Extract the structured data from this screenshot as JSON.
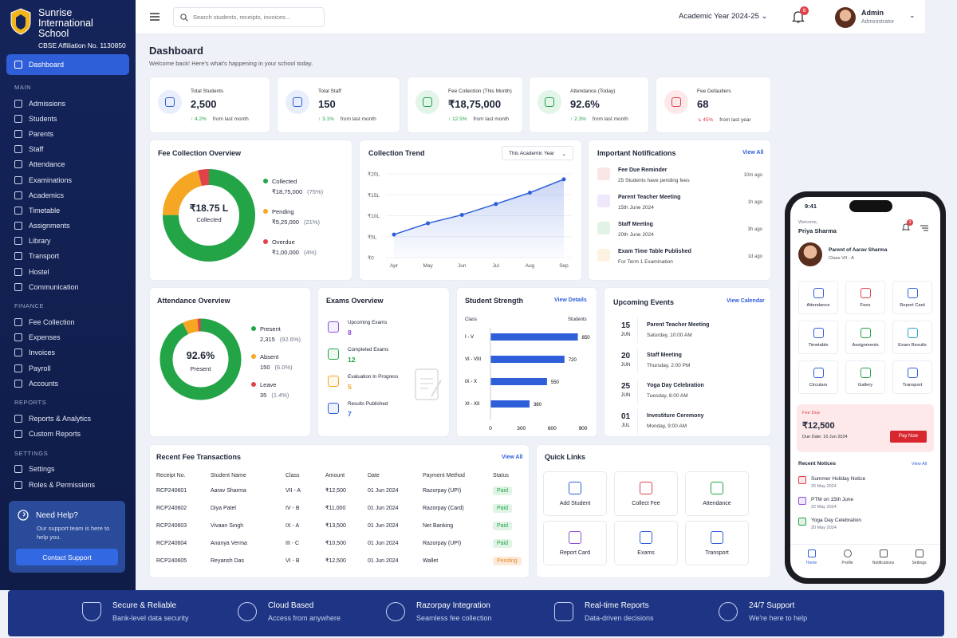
{
  "school": {
    "name_line1": "Sunrise",
    "name_line2": "International School",
    "affiliation": "CBSE Affiliation No. 1130850"
  },
  "sidebar": {
    "active": "Dashboard",
    "sections": [
      {
        "title": "MAIN",
        "items": [
          "Admissions",
          "Students",
          "Parents",
          "Staff",
          "Attendance",
          "Examinations",
          "Academics",
          "Timetable",
          "Assignments",
          "Library",
          "Transport",
          "Hostel",
          "Communication"
        ]
      },
      {
        "title": "FINANCE",
        "items": [
          "Fee Collection",
          "Expenses",
          "Invoices",
          "Payroll",
          "Accounts"
        ]
      },
      {
        "title": "REPORTS",
        "items": [
          "Reports & Analytics",
          "Custom Reports"
        ]
      },
      {
        "title": "SETTINGS",
        "items": [
          "Settings",
          "Roles & Permissions"
        ]
      }
    ],
    "help": {
      "title": "Need Help?",
      "desc": "Our support team is here to help you.",
      "button": "Contact Support"
    }
  },
  "topbar": {
    "search_placeholder": "Search students, receipts, invoices...",
    "academic_year": "Academic Year 2024-25",
    "notif_count": "8",
    "user_name": "Admin",
    "user_role": "Administrator"
  },
  "page": {
    "title": "Dashboard",
    "subtitle": "Welcome back! Here's what's happening in your school today."
  },
  "stats": [
    {
      "label": "Total Students",
      "value": "2,500",
      "change": "4.2%",
      "period": "from last month",
      "dir": "up"
    },
    {
      "label": "Total Staff",
      "value": "150",
      "change": "3.1%",
      "period": "from last month",
      "dir": "up"
    },
    {
      "label": "Fee Collection (This Month)",
      "value": "₹18,75,000",
      "change": "12.5%",
      "period": "from last month",
      "dir": "up"
    },
    {
      "label": "Attendance (Today)",
      "value": "92.6%",
      "change": "2.3%",
      "period": "from last month",
      "dir": "up"
    },
    {
      "label": "Fee Defaulters",
      "value": "68",
      "change": "45%",
      "period": "from last year",
      "dir": "down"
    }
  ],
  "fee_overview": {
    "title": "Fee Collection Overview",
    "center_value": "₹18.75 L",
    "center_label": "Collected",
    "items": [
      {
        "label": "Collected",
        "value": "₹18,75,000",
        "pct": "(75%)",
        "share": 75,
        "color": "#22a447"
      },
      {
        "label": "Pending",
        "value": "₹5,25,000",
        "pct": "(21%)",
        "share": 21,
        "color": "#f5a623"
      },
      {
        "label": "Overdue",
        "value": "₹1,00,000",
        "pct": "(4%)",
        "share": 4,
        "color": "#e0414b"
      }
    ]
  },
  "chart_data": {
    "type": "line",
    "title": "Collection Trend",
    "filter": "This Academic Year",
    "x": [
      "Apr",
      "May",
      "Jun",
      "Jul",
      "Aug",
      "Sep"
    ],
    "values": [
      5.5,
      8.2,
      10.2,
      12.8,
      15.5,
      18.7
    ],
    "yticks": [
      "₹20L",
      "₹15L",
      "₹10L",
      "₹5L",
      "₹0"
    ],
    "ylim": [
      0,
      20
    ],
    "color": "#2f5fd8"
  },
  "notifications": {
    "title": "Important Notifications",
    "link": "View All",
    "items": [
      {
        "title": "Fee Due Reminder",
        "desc": "25 Students have pending fees",
        "time": "10m ago",
        "color": "#e0414b"
      },
      {
        "title": "Parent Teacher Meeting",
        "desc": "15th June 2024",
        "time": "1h ago",
        "color": "#8a4fd8"
      },
      {
        "title": "Staff Meeting",
        "desc": "20th June 2024",
        "time": "3h ago",
        "color": "#22a447"
      },
      {
        "title": "Exam Time Table Published",
        "desc": "For Term 1 Examination",
        "time": "1d ago",
        "color": "#f5a623"
      }
    ]
  },
  "attendance": {
    "title": "Attendance Overview",
    "center_value": "92.6%",
    "center_label": "Present",
    "items": [
      {
        "label": "Present",
        "value": "2,315",
        "pct": "(92.6%)",
        "share": 92.6,
        "color": "#22a447"
      },
      {
        "label": "Absent",
        "value": "150",
        "pct": "(6.0%)",
        "share": 6.0,
        "color": "#f5a623"
      },
      {
        "label": "Leave",
        "value": "35",
        "pct": "(1.4%)",
        "share": 1.4,
        "color": "#e0414b"
      }
    ]
  },
  "exams": {
    "title": "Exams Overview",
    "items": [
      {
        "label": "Upcoming Exams",
        "value": "8",
        "color": "#8a4fd8"
      },
      {
        "label": "Completed Exams",
        "value": "12",
        "color": "#22a447"
      },
      {
        "label": "Evaluation In Progress",
        "value": "5",
        "color": "#f5a623"
      },
      {
        "label": "Results Published",
        "value": "7",
        "color": "#2f5fd8"
      }
    ]
  },
  "strength": {
    "title": "Student Strength",
    "link": "View Details",
    "col1": "Class",
    "col2": "Students",
    "rows": [
      {
        "label": "I - V",
        "value": 850
      },
      {
        "label": "VI - VIII",
        "value": 720
      },
      {
        "label": "IX - X",
        "value": 550
      },
      {
        "label": "XI - XII",
        "value": 380
      }
    ],
    "ticks": [
      "0",
      "300",
      "600",
      "900"
    ],
    "max": 900
  },
  "events": {
    "title": "Upcoming Events",
    "link": "View Calendar",
    "items": [
      {
        "day": "15",
        "mon": "JUN",
        "title": "Parent Teacher Meeting",
        "when": "Saturday, 10:00 AM"
      },
      {
        "day": "20",
        "mon": "JUN",
        "title": "Staff Meeting",
        "when": "Thursday, 2:00 PM"
      },
      {
        "day": "25",
        "mon": "JUN",
        "title": "Yoga Day Celebration",
        "when": "Tuesday, 8:00 AM"
      },
      {
        "day": "01",
        "mon": "JUL",
        "title": "Investiture Ceremony",
        "when": "Monday, 9:00 AM"
      }
    ]
  },
  "transactions": {
    "title": "Recent Fee Transactions",
    "link": "View All",
    "headers": [
      "Receipt No.",
      "Student Name",
      "Class",
      "Amount",
      "Date",
      "Payment Method",
      "Status"
    ],
    "rows": [
      [
        "RCP240601",
        "Aarav Sharma",
        "VII - A",
        "₹12,500",
        "01 Jun 2024",
        "Razorpay (UPI)",
        "Paid"
      ],
      [
        "RCP240602",
        "Diya Patel",
        "IV - B",
        "₹11,000",
        "01 Jun 2024",
        "Razorpay (Card)",
        "Paid"
      ],
      [
        "RCP240603",
        "Vivaan Singh",
        "IX - A",
        "₹13,500",
        "01 Jun 2024",
        "Net Banking",
        "Paid"
      ],
      [
        "RCP240604",
        "Ananya Verma",
        "III - C",
        "₹10,500",
        "01 Jun 2024",
        "Razorpay (UPI)",
        "Paid"
      ],
      [
        "RCP240605",
        "Reyansh Das",
        "VI - B",
        "₹12,500",
        "01 Jun 2024",
        "Wallet",
        "Pending"
      ]
    ]
  },
  "quick_links": {
    "title": "Quick Links",
    "items": [
      {
        "label": "Add Student",
        "color": "#2f5fd8"
      },
      {
        "label": "Collect Fee",
        "color": "#e0414b"
      },
      {
        "label": "Attendance",
        "color": "#22a447"
      },
      {
        "label": "Report Card",
        "color": "#8a4fd8"
      },
      {
        "label": "Exams",
        "color": "#2f5fd8"
      },
      {
        "label": "Transport",
        "color": "#2f5fd8"
      }
    ]
  },
  "footer": [
    {
      "title": "Secure & Reliable",
      "sub": "Bank-level data security"
    },
    {
      "title": "Cloud Based",
      "sub": "Access from anywhere"
    },
    {
      "title": "Razorpay Integration",
      "sub": "Seamless fee collection"
    },
    {
      "title": "Real-time Reports",
      "sub": "Data-driven decisions"
    },
    {
      "title": "24/7 Support",
      "sub": "We're here to help"
    }
  ],
  "phone": {
    "time": "9:41",
    "welcome": "Welcome,",
    "user": "Priya Sharma",
    "notif": "3",
    "parent_of": "Parent of Aarav Sharma",
    "class": "Class VII - A",
    "grid": [
      {
        "label": "Attendance",
        "color": "#2f5fd8"
      },
      {
        "label": "Fees",
        "color": "#e0414b"
      },
      {
        "label": "Report Card",
        "color": "#2f5fd8"
      },
      {
        "label": "Timetable",
        "color": "#2f5fd8"
      },
      {
        "label": "Assignments",
        "color": "#22a447"
      },
      {
        "label": "Exam Results",
        "color": "#2aa1c9"
      },
      {
        "label": "Circulars",
        "color": "#2f5fd8"
      },
      {
        "label": "Gallery",
        "color": "#22a447"
      },
      {
        "label": "Transport",
        "color": "#2f5fd8"
      }
    ],
    "fee_label": "Fee Due",
    "fee_value": "₹12,500",
    "fee_date": "Due Date: 10 Jun 2024",
    "pay_btn": "Pay Now",
    "notices_title": "Recent Notices",
    "notices_link": "View All",
    "notices": [
      {
        "title": "Summer Holiday Notice",
        "date": "25 May 2024",
        "color": "#e0414b"
      },
      {
        "title": "PTM on 15th June",
        "date": "22 May 2024",
        "color": "#8a4fd8"
      },
      {
        "title": "Yoga Day Celebration",
        "date": "20 May 2024",
        "color": "#22a447"
      }
    ],
    "nav": [
      "Home",
      "Profile",
      "Notifications",
      "Settings"
    ]
  }
}
